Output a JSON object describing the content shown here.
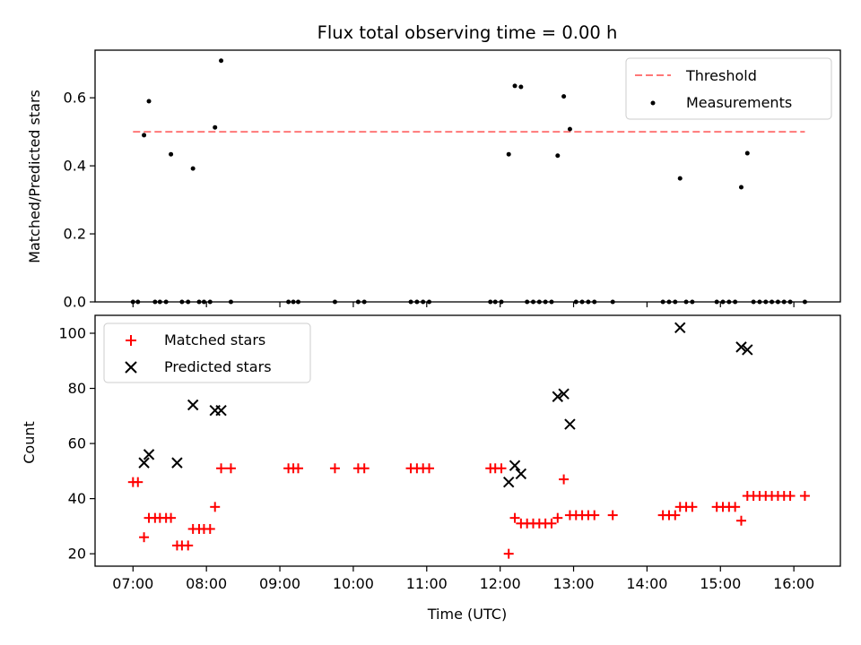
{
  "chart_data": [
    {
      "type": "scatter",
      "title": "Flux total observing time = 0.00 h",
      "xlabel": "",
      "ylabel": "Matched/Predicted stars",
      "ylim": [
        0,
        0.74
      ],
      "y_ticks": [
        0.0,
        0.2,
        0.4,
        0.6
      ],
      "y_tick_labels": [
        "0.0",
        "0.2",
        "0.4",
        "0.6"
      ],
      "legend_position": "top-right",
      "threshold": {
        "name": "Threshold",
        "value": 0.5,
        "x_start": "07:00",
        "x_end": "16:09",
        "color": "#ff7777",
        "style": "dashed"
      },
      "series": [
        {
          "name": "Measurements",
          "color": "#000000",
          "marker": "dot",
          "points": [
            [
              "07:00",
              0.0
            ],
            [
              "07:04",
              0.0
            ],
            [
              "07:09",
              0.49
            ],
            [
              "07:13",
              0.59
            ],
            [
              "07:18",
              0.0
            ],
            [
              "07:22",
              0.0
            ],
            [
              "07:27",
              0.0
            ],
            [
              "07:31",
              0.434
            ],
            [
              "07:40",
              0.0
            ],
            [
              "07:45",
              0.0
            ],
            [
              "07:49",
              0.392
            ],
            [
              "07:54",
              0.0
            ],
            [
              "07:58",
              0.0
            ],
            [
              "08:03",
              0.0
            ],
            [
              "08:07",
              0.513
            ],
            [
              "08:12",
              0.709
            ],
            [
              "08:20",
              0.0
            ],
            [
              "09:07",
              0.0
            ],
            [
              "09:11",
              0.0
            ],
            [
              "09:15",
              0.0
            ],
            [
              "09:45",
              0.0
            ],
            [
              "10:04",
              0.0
            ],
            [
              "10:09",
              0.0
            ],
            [
              "10:47",
              0.0
            ],
            [
              "10:52",
              0.0
            ],
            [
              "10:57",
              0.0
            ],
            [
              "11:02",
              0.0
            ],
            [
              "11:52",
              0.0
            ],
            [
              "11:56",
              0.0
            ],
            [
              "12:01",
              0.0
            ],
            [
              "12:07",
              0.434
            ],
            [
              "12:12",
              0.635
            ],
            [
              "12:17",
              0.632
            ],
            [
              "12:22",
              0.0
            ],
            [
              "12:27",
              0.0
            ],
            [
              "12:32",
              0.0
            ],
            [
              "12:37",
              0.0
            ],
            [
              "12:42",
              0.0
            ],
            [
              "12:47",
              0.43
            ],
            [
              "12:52",
              0.604
            ],
            [
              "12:57",
              0.508
            ],
            [
              "13:02",
              0.0
            ],
            [
              "13:07",
              0.0
            ],
            [
              "13:12",
              0.0
            ],
            [
              "13:17",
              0.0
            ],
            [
              "13:32",
              0.0
            ],
            [
              "14:13",
              0.0
            ],
            [
              "14:18",
              0.0
            ],
            [
              "14:23",
              0.0
            ],
            [
              "14:27",
              0.363
            ],
            [
              "14:32",
              0.0
            ],
            [
              "14:37",
              0.0
            ],
            [
              "14:57",
              0.0
            ],
            [
              "15:02",
              0.0
            ],
            [
              "15:07",
              0.0
            ],
            [
              "15:12",
              0.0
            ],
            [
              "15:17",
              0.337
            ],
            [
              "15:22",
              0.437
            ],
            [
              "15:27",
              0.0
            ],
            [
              "15:32",
              0.0
            ],
            [
              "15:37",
              0.0
            ],
            [
              "15:42",
              0.0
            ],
            [
              "15:47",
              0.0
            ],
            [
              "15:52",
              0.0
            ],
            [
              "15:57",
              0.0
            ],
            [
              "16:09",
              0.0
            ]
          ]
        }
      ]
    },
    {
      "type": "scatter",
      "title": "",
      "xlabel": "Time (UTC)",
      "ylabel": "Count",
      "xlim": [
        "06:29",
        "16:38"
      ],
      "ylim": [
        15.5,
        106.5
      ],
      "x_ticks": [
        "07:00",
        "08:00",
        "09:00",
        "10:00",
        "11:00",
        "12:00",
        "13:00",
        "14:00",
        "15:00",
        "16:00"
      ],
      "y_ticks": [
        20,
        40,
        60,
        80,
        100
      ],
      "y_tick_labels": [
        "20",
        "40",
        "60",
        "80",
        "100"
      ],
      "legend_position": "top-left",
      "series": [
        {
          "name": "Matched stars",
          "color": "#ff0000",
          "marker": "plus",
          "points": [
            [
              "07:00",
              46
            ],
            [
              "07:04",
              46
            ],
            [
              "07:09",
              26
            ],
            [
              "07:13",
              33
            ],
            [
              "07:18",
              33
            ],
            [
              "07:22",
              33
            ],
            [
              "07:27",
              33
            ],
            [
              "07:31",
              33
            ],
            [
              "07:36",
              23
            ],
            [
              "07:40",
              23
            ],
            [
              "07:45",
              23
            ],
            [
              "07:49",
              29
            ],
            [
              "07:54",
              29
            ],
            [
              "07:58",
              29
            ],
            [
              "08:03",
              29
            ],
            [
              "08:07",
              37
            ],
            [
              "08:12",
              51
            ],
            [
              "08:20",
              51
            ],
            [
              "09:07",
              51
            ],
            [
              "09:11",
              51
            ],
            [
              "09:15",
              51
            ],
            [
              "09:45",
              51
            ],
            [
              "10:04",
              51
            ],
            [
              "10:09",
              51
            ],
            [
              "10:47",
              51
            ],
            [
              "10:52",
              51
            ],
            [
              "10:57",
              51
            ],
            [
              "11:02",
              51
            ],
            [
              "11:52",
              51
            ],
            [
              "11:56",
              51
            ],
            [
              "12:01",
              51
            ],
            [
              "12:07",
              20
            ],
            [
              "12:12",
              33
            ],
            [
              "12:17",
              31
            ],
            [
              "12:22",
              31
            ],
            [
              "12:27",
              31
            ],
            [
              "12:32",
              31
            ],
            [
              "12:37",
              31
            ],
            [
              "12:42",
              31
            ],
            [
              "12:47",
              33
            ],
            [
              "12:52",
              47
            ],
            [
              "12:57",
              34
            ],
            [
              "13:02",
              34
            ],
            [
              "13:07",
              34
            ],
            [
              "13:12",
              34
            ],
            [
              "13:17",
              34
            ],
            [
              "13:32",
              34
            ],
            [
              "14:13",
              34
            ],
            [
              "14:18",
              34
            ],
            [
              "14:23",
              34
            ],
            [
              "14:27",
              37
            ],
            [
              "14:32",
              37
            ],
            [
              "14:37",
              37
            ],
            [
              "14:57",
              37
            ],
            [
              "15:02",
              37
            ],
            [
              "15:07",
              37
            ],
            [
              "15:12",
              37
            ],
            [
              "15:17",
              32
            ],
            [
              "15:22",
              41
            ],
            [
              "15:27",
              41
            ],
            [
              "15:32",
              41
            ],
            [
              "15:37",
              41
            ],
            [
              "15:42",
              41
            ],
            [
              "15:47",
              41
            ],
            [
              "15:52",
              41
            ],
            [
              "15:57",
              41
            ],
            [
              "16:09",
              41
            ]
          ]
        },
        {
          "name": "Predicted stars",
          "color": "#000000",
          "marker": "x",
          "points": [
            [
              "07:09",
              53
            ],
            [
              "07:13",
              56
            ],
            [
              "07:36",
              53
            ],
            [
              "07:49",
              74
            ],
            [
              "08:07",
              72
            ],
            [
              "08:12",
              72
            ],
            [
              "12:07",
              46
            ],
            [
              "12:12",
              52
            ],
            [
              "12:17",
              49
            ],
            [
              "12:47",
              77
            ],
            [
              "12:52",
              78
            ],
            [
              "12:57",
              67
            ],
            [
              "14:27",
              102
            ],
            [
              "15:17",
              95
            ],
            [
              "15:22",
              94
            ]
          ]
        }
      ]
    }
  ]
}
